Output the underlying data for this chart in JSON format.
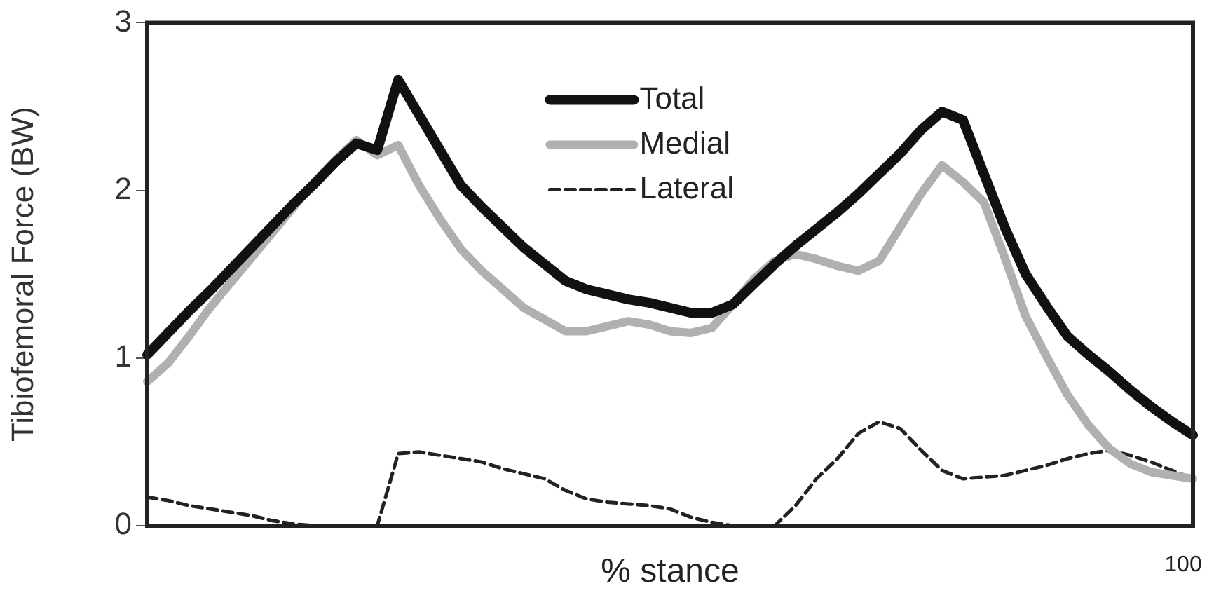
{
  "chart_data": {
    "type": "line",
    "xlabel": "% stance",
    "ylabel": "Tibiofemoral Force (BW)",
    "categories": [
      null,
      null,
      null,
      null,
      null,
      null,
      null,
      null,
      null,
      null,
      null,
      null,
      null,
      null,
      null,
      null,
      null,
      null,
      null,
      null,
      null,
      null,
      null,
      null,
      null,
      null,
      null,
      null,
      null,
      null,
      null,
      null,
      null,
      null,
      null,
      null,
      null,
      null,
      null,
      null,
      null,
      null,
      null,
      null,
      null,
      null,
      null,
      null,
      null,
      null,
      null
    ],
    "ylim": [
      0,
      3
    ],
    "yticks": [
      0,
      1,
      2,
      3
    ],
    "annotations": [
      "100"
    ],
    "grid": false,
    "legend": "top",
    "marker": "none",
    "series": [
      {
        "name": "Total",
        "color": "#111111",
        "line_style": "solid",
        "values": [
          1.02,
          1.15,
          1.28,
          1.4,
          1.53,
          1.66,
          1.79,
          1.92,
          2.04,
          2.17,
          2.28,
          2.24,
          2.66,
          2.45,
          2.24,
          2.03,
          1.9,
          1.78,
          1.66,
          1.56,
          1.46,
          1.41,
          1.38,
          1.35,
          1.33,
          1.3,
          1.27,
          1.27,
          1.32,
          1.44,
          1.56,
          1.67,
          1.77,
          1.87,
          1.98,
          2.1,
          2.22,
          2.36,
          2.47,
          2.42,
          2.1,
          1.78,
          1.5,
          1.31,
          1.13,
          1.02,
          0.92,
          0.81,
          0.71,
          0.62,
          0.54
        ]
      },
      {
        "name": "Medial",
        "color": "#b0b0b0",
        "line_style": "solid",
        "values": [
          0.86,
          0.97,
          1.13,
          1.3,
          1.45,
          1.6,
          1.75,
          1.9,
          2.05,
          2.18,
          2.3,
          2.21,
          2.27,
          2.03,
          1.83,
          1.65,
          1.52,
          1.41,
          1.3,
          1.23,
          1.16,
          1.16,
          1.19,
          1.22,
          1.2,
          1.16,
          1.15,
          1.18,
          1.32,
          1.47,
          1.58,
          1.62,
          1.59,
          1.55,
          1.52,
          1.58,
          1.78,
          1.98,
          2.15,
          2.05,
          1.93,
          1.6,
          1.25,
          1.01,
          0.78,
          0.6,
          0.46,
          0.37,
          0.32,
          0.3,
          0.28
        ]
      },
      {
        "name": "Lateral",
        "color": "#222222",
        "line_style": "dashed",
        "values": [
          0.17,
          0.15,
          0.12,
          0.1,
          0.08,
          0.06,
          0.03,
          0.01,
          0,
          0,
          0,
          0,
          0.43,
          0.44,
          0.42,
          0.4,
          0.38,
          0.34,
          0.31,
          0.28,
          0.21,
          0.16,
          0.14,
          0.13,
          0.12,
          0.1,
          0.05,
          0.02,
          0,
          0,
          0,
          0.12,
          0.28,
          0.4,
          0.55,
          0.62,
          0.58,
          0.45,
          0.33,
          0.28,
          0.29,
          0.3,
          0.33,
          0.36,
          0.4,
          0.43,
          0.45,
          0.42,
          0.38,
          0.33,
          0.28
        ]
      }
    ]
  }
}
